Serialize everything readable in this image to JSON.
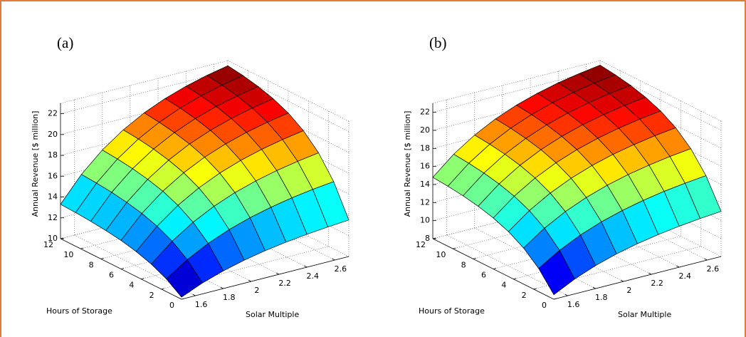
{
  "chart_data": [
    {
      "type": "surface",
      "panel_label": "(a)",
      "xlabel": "Solar Multiple",
      "ylabel": "Hours of Storage",
      "zlabel": "Annual Revenue [$ million]",
      "colormap": "jet",
      "grid": true,
      "x": [
        1.5,
        1.65,
        1.8,
        1.95,
        2.1,
        2.25,
        2.4,
        2.55,
        2.7
      ],
      "y": [
        0,
        1.5,
        3,
        4.5,
        6,
        7.5,
        9,
        10.5,
        12
      ],
      "z": [
        [
          10.2,
          11.05,
          11.7,
          12.21,
          12.61,
          12.92,
          13.16,
          13.35,
          13.5
        ],
        [
          11.22,
          12.56,
          13.61,
          14.42,
          15.05,
          15.54,
          15.93,
          16.23,
          16.46
        ],
        [
          11.92,
          13.6,
          14.91,
          15.93,
          16.73,
          17.34,
          17.82,
          18.2,
          18.5
        ],
        [
          12.4,
          14.32,
          15.81,
          16.97,
          17.88,
          18.58,
          19.13,
          19.56,
          19.9
        ],
        [
          12.74,
          14.82,
          16.44,
          17.7,
          18.68,
          19.44,
          20.04,
          20.5,
          20.87
        ],
        [
          12.96,
          15.15,
          16.85,
          18.18,
          19.22,
          20.02,
          20.64,
          21.13,
          21.52
        ],
        [
          13.12,
          15.39,
          17.15,
          18.52,
          19.59,
          20.42,
          21.07,
          21.57,
          21.97
        ],
        [
          13.23,
          15.55,
          17.35,
          18.76,
          19.85,
          20.7,
          21.36,
          21.88,
          22.29
        ],
        [
          13.3,
          15.66,
          17.49,
          18.91,
          20.03,
          20.89,
          21.56,
          22.09,
          22.5
        ]
      ],
      "xlim": [
        1.5,
        2.7
      ],
      "xticks": [
        1.6,
        1.8,
        2,
        2.2,
        2.4,
        2.6
      ],
      "ylim": [
        0,
        12
      ],
      "yticks": [
        0,
        2,
        4,
        6,
        8,
        10,
        12
      ],
      "zlim": [
        10,
        23
      ],
      "zticks": [
        10,
        12,
        14,
        16,
        18,
        20,
        22
      ]
    },
    {
      "type": "surface",
      "panel_label": "(b)",
      "xlabel": "Solar Multiple",
      "ylabel": "Hours of Storage",
      "zlabel": "Annual Revenue [$ million]",
      "colormap": "jet",
      "grid": true,
      "x": [
        1.5,
        1.65,
        1.8,
        1.95,
        2.1,
        2.25,
        2.4,
        2.55,
        2.7
      ],
      "y": [
        0,
        1.5,
        3,
        4.5,
        6,
        7.5,
        9,
        10.5,
        12
      ],
      "z": [
        [
          8.5,
          9.65,
          10.55,
          11.25,
          11.79,
          12.21,
          12.54,
          12.8,
          13.0
        ],
        [
          10.57,
          11.99,
          13.1,
          13.96,
          14.63,
          15.15,
          15.56,
          15.87,
          16.12
        ],
        [
          12.0,
          13.6,
          14.85,
          15.82,
          16.58,
          17.17,
          17.63,
          17.99,
          18.27
        ],
        [
          12.98,
          14.71,
          16.06,
          17.11,
          17.93,
          18.57,
          19.06,
          19.45,
          19.75
        ],
        [
          13.65,
          15.47,
          16.89,
          17.99,
          18.85,
          19.52,
          20.04,
          20.45,
          20.77
        ],
        [
          14.11,
          15.99,
          17.46,
          18.6,
          19.48,
          20.18,
          20.71,
          21.13,
          21.46
        ],
        [
          14.43,
          16.35,
          17.85,
          19.01,
          19.92,
          20.63,
          21.18,
          21.6,
          21.94
        ],
        [
          14.65,
          16.6,
          18.12,
          19.3,
          20.22,
          20.94,
          21.5,
          21.93,
          22.27
        ],
        [
          14.8,
          16.77,
          18.3,
          19.5,
          20.43,
          21.15,
          21.72,
          22.15,
          22.5
        ]
      ],
      "xlim": [
        1.5,
        2.7
      ],
      "xticks": [
        1.6,
        1.8,
        2,
        2.2,
        2.4,
        2.6
      ],
      "ylim": [
        0,
        12
      ],
      "yticks": [
        0,
        2,
        4,
        6,
        8,
        10,
        12
      ],
      "zlim": [
        8,
        23
      ],
      "zticks": [
        8,
        10,
        12,
        14,
        16,
        18,
        20,
        22
      ]
    }
  ]
}
